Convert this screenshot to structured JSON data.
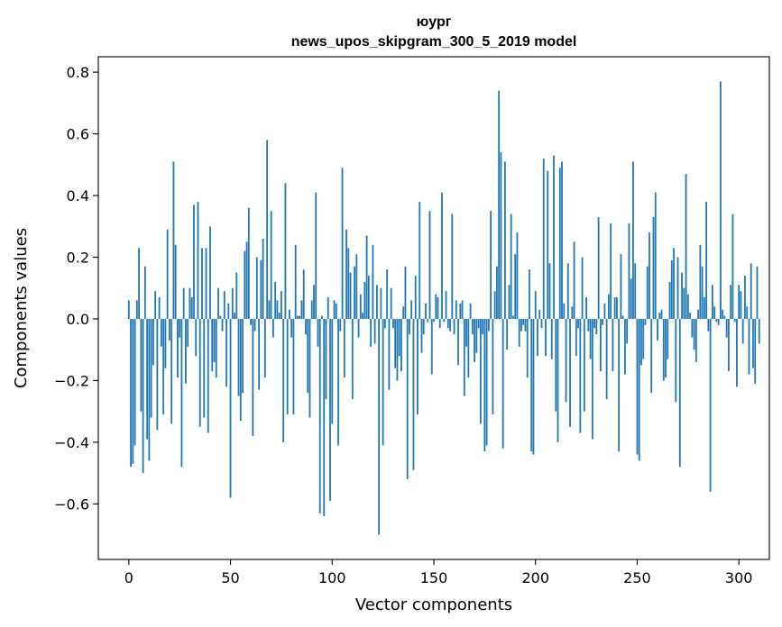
{
  "chart_data": {
    "type": "bar",
    "title": "юург",
    "subtitle": "news_upos_skipgram_300_5_2019 model",
    "xlabel": "Vector components",
    "ylabel": "Components values",
    "xlim": [
      -15,
      315
    ],
    "ylim": [
      -0.78,
      0.85
    ],
    "xticks": [
      0,
      50,
      100,
      150,
      200,
      250,
      300
    ],
    "xtick_labels": [
      "0",
      "50",
      "100",
      "150",
      "200",
      "250",
      "300"
    ],
    "yticks": [
      -0.6,
      -0.4,
      -0.2,
      0.0,
      0.2,
      0.4,
      0.6,
      0.8
    ],
    "ytick_labels": [
      "−0.6",
      "−0.4",
      "−0.2",
      "0.0",
      "0.2",
      "0.4",
      "0.6",
      "0.8"
    ],
    "grid": false,
    "bar_color": "#1f77b4",
    "series": [
      {
        "values": [
          0.06,
          -0.48,
          -0.47,
          -0.41,
          0.06,
          0.23,
          -0.3,
          -0.5,
          0.17,
          -0.39,
          -0.46,
          -0.32,
          -0.15,
          0.09,
          -0.36,
          0.07,
          -0.09,
          -0.31,
          -0.16,
          0.29,
          -0.07,
          -0.34,
          0.51,
          0.24,
          -0.19,
          -0.06,
          -0.48,
          0.1,
          -0.21,
          -0.09,
          0.1,
          0.07,
          0.37,
          -0.12,
          0.38,
          -0.35,
          0.23,
          -0.32,
          0.23,
          -0.37,
          0.3,
          -0.17,
          -0.14,
          -0.19,
          0.1,
          0.01,
          -0.04,
          0.09,
          -0.22,
          0.05,
          -0.58,
          0.1,
          0.02,
          0.15,
          -0.25,
          -0.33,
          -0.24,
          0.22,
          0.25,
          0.36,
          -0.02,
          -0.38,
          -0.04,
          0.2,
          -0.23,
          0.19,
          0.26,
          -0.19,
          0.58,
          0.06,
          0.35,
          -0.06,
          0.12,
          0.06,
          0.02,
          0.09,
          -0.4,
          0.44,
          -0.31,
          0.03,
          -0.06,
          -0.31,
          0.24,
          0.01,
          0.01,
          0.06,
          0.16,
          -0.05,
          -0.24,
          -0.32,
          0.06,
          0.11,
          0.41,
          -0.09,
          -0.63,
          0.01,
          -0.64,
          -0.26,
          0.07,
          -0.59,
          -0.34,
          0.06,
          0.05,
          -0.41,
          -0.04,
          0.49,
          -0.19,
          0.29,
          0.23,
          0.15,
          -0.26,
          0.17,
          0.21,
          -0.06,
          0.08,
          0.02,
          0.12,
          0.27,
          0.14,
          -0.09,
          0.24,
          -0.08,
          0.11,
          -0.7,
          0.1,
          -0.41,
          -0.03,
          0.16,
          -0.23,
          0.1,
          -0.03,
          -0.16,
          -0.2,
          -0.12,
          -0.17,
          0.04,
          0.17,
          -0.52,
          -0.05,
          0.06,
          -0.49,
          0.14,
          -0.31,
          0.38,
          -0.11,
          -0.05,
          0.05,
          -0.01,
          0.35,
          -0.18,
          -0.01,
          0.08,
          0.07,
          -0.03,
          0.41,
          -0.01,
          0.09,
          -0.03,
          -0.04,
          0.34,
          -0.05,
          0.06,
          -0.15,
          0.05,
          0.06,
          -0.25,
          -0.09,
          -0.19,
          0.05,
          -0.05,
          -0.14,
          -0.11,
          -0.03,
          -0.34,
          -0.05,
          -0.43,
          -0.41,
          -0.04,
          0.35,
          -0.31,
          0.09,
          0.17,
          0.74,
          0.54,
          -0.42,
          0.51,
          -0.1,
          0.11,
          0.34,
          0.01,
          0.21,
          0.28,
          -0.09,
          -0.04,
          -0.02,
          -0.04,
          -0.19,
          0.16,
          -0.43,
          -0.44,
          0.09,
          -0.12,
          0.03,
          -0.03,
          0.52,
          -0.12,
          0.48,
          0.18,
          -0.13,
          0.53,
          -0.3,
          -0.4,
          0.49,
          0.51,
          0.05,
          -0.27,
          0.18,
          -0.35,
          0.04,
          0.25,
          -0.12,
          -0.03,
          -0.37,
          0.2,
          -0.3,
          0.07,
          -0.04,
          -0.13,
          -0.39,
          -0.03,
          -0.05,
          0.33,
          -0.17,
          -0.02,
          0.05,
          -0.26,
          0.08,
          0.31,
          -0.17,
          0.07,
          0.07,
          -0.43,
          0.21,
          0.01,
          -0.18,
          -0.08,
          0.31,
          0.13,
          0.51,
          0.18,
          -0.44,
          -0.46,
          -0.15,
          -0.13,
          -0.02,
          0.17,
          0.28,
          -0.24,
          0.33,
          0.41,
          -0.07,
          0.02,
          0.03,
          -0.2,
          -0.19,
          -0.13,
          0.12,
          0.19,
          0.23,
          -0.27,
          0.2,
          -0.48,
          0.15,
          0.1,
          0.47,
          0.08,
          0.02,
          -0.06,
          -0.1,
          -0.14,
          0.03,
          0.24,
          0.17,
          0.07,
          0.38,
          -0.04,
          -0.56,
          0.11,
          0.04,
          -0.01,
          -0.02,
          0.77,
          0.03,
          0.01,
          -0.06,
          -0.17,
          0.11,
          0.34,
          -0.01,
          -0.22,
          0.11,
          0.09,
          -0.08,
          0.14,
          0.04,
          -0.18,
          0.18,
          -0.16,
          -0.21,
          0.17,
          -0.08
        ]
      }
    ]
  }
}
